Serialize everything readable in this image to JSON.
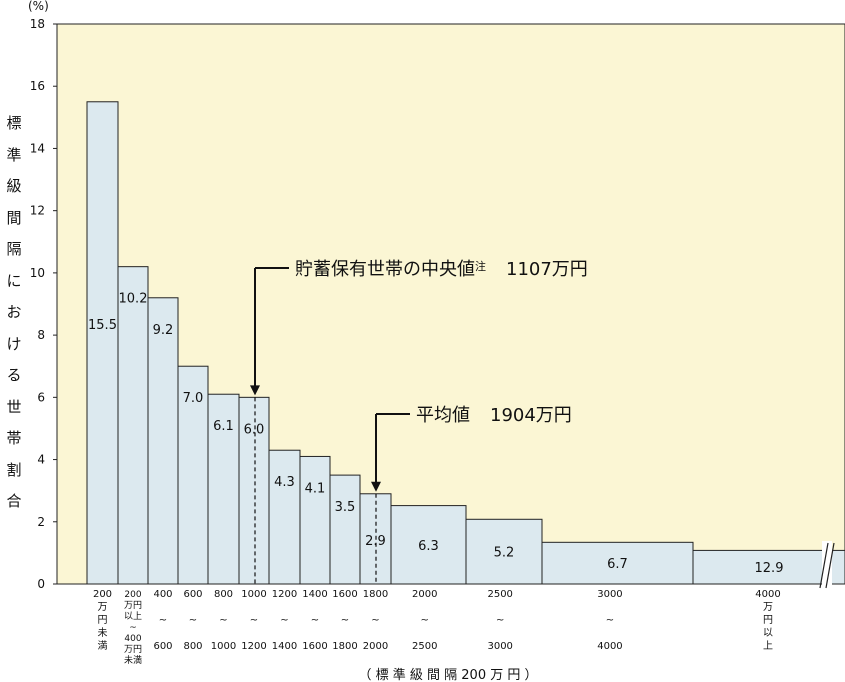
{
  "chart_data": {
    "type": "bar",
    "y_unit": "(%)",
    "ylabel": "標準級間隔における世帯割合",
    "xlabel": "（ 標 準 級 間 隔 200 万 円 ）",
    "ylim": [
      0,
      18
    ],
    "yticks": [
      "0",
      "2",
      "4",
      "6",
      "8",
      "10",
      "12",
      "14",
      "16",
      "18"
    ],
    "grid": false,
    "background_color": "#fbf6d4",
    "bar_color": "#dce9ef",
    "bars": [
      {
        "start": 0,
        "end": 200,
        "value": 15.5,
        "label": "15.5",
        "tick": [
          "200",
          "万",
          "円",
          "未",
          "満"
        ]
      },
      {
        "start": 200,
        "end": 400,
        "value": 10.2,
        "label": "10.2",
        "tick": [
          "200",
          "万円",
          "以上",
          "~",
          "400",
          "万円",
          "未満"
        ]
      },
      {
        "start": 400,
        "end": 600,
        "value": 9.2,
        "label": "9.2",
        "tick": [
          "400",
          "",
          "~",
          "",
          "600"
        ]
      },
      {
        "start": 600,
        "end": 800,
        "value": 7.0,
        "label": "7.0",
        "tick": [
          "600",
          "",
          "~",
          "",
          "800"
        ]
      },
      {
        "start": 800,
        "end": 1000,
        "value": 6.1,
        "label": "6.1",
        "tick": [
          "800",
          "",
          "~",
          "",
          "1000"
        ]
      },
      {
        "start": 1000,
        "end": 1200,
        "value": 6.0,
        "label": "6.0",
        "tick": [
          "1000",
          "",
          "~",
          "",
          "1200"
        ]
      },
      {
        "start": 1200,
        "end": 1400,
        "value": 4.3,
        "label": "4.3",
        "tick": [
          "1200",
          "",
          "~",
          "",
          "1400"
        ]
      },
      {
        "start": 1400,
        "end": 1600,
        "value": 4.1,
        "label": "4.1",
        "tick": [
          "1400",
          "",
          "~",
          "",
          "1600"
        ]
      },
      {
        "start": 1600,
        "end": 1800,
        "value": 3.5,
        "label": "3.5",
        "tick": [
          "1600",
          "",
          "~",
          "",
          "1800"
        ]
      },
      {
        "start": 1800,
        "end": 2000,
        "value": 2.9,
        "label": "2.9",
        "tick": [
          "1800",
          "",
          "~",
          "",
          "2000"
        ]
      },
      {
        "start": 2000,
        "end": 2500,
        "value": 2.52,
        "label": "6.3",
        "tick": [
          "2000",
          "",
          "~",
          "",
          "2500"
        ]
      },
      {
        "start": 2500,
        "end": 3000,
        "value": 2.08,
        "label": "5.2",
        "tick": [
          "2500",
          "",
          "~",
          "",
          "3000"
        ]
      },
      {
        "start": 3000,
        "end": 4000,
        "value": 1.34,
        "label": "6.7",
        "tick": [
          "3000",
          "",
          "~",
          "",
          "4000"
        ]
      },
      {
        "start": 4000,
        "end": 5000,
        "value": 1.08,
        "label": "12.9",
        "tick": [
          "4000",
          "万",
          "円",
          "以",
          "上"
        ]
      }
    ],
    "annotations": [
      {
        "text": "貯蓄保有世帯の中央値",
        "suffix": "注",
        "amount": "1107万円",
        "x": 1107
      },
      {
        "text": "平均値",
        "suffix": "",
        "amount": "1904万円",
        "x": 1904
      }
    ]
  }
}
